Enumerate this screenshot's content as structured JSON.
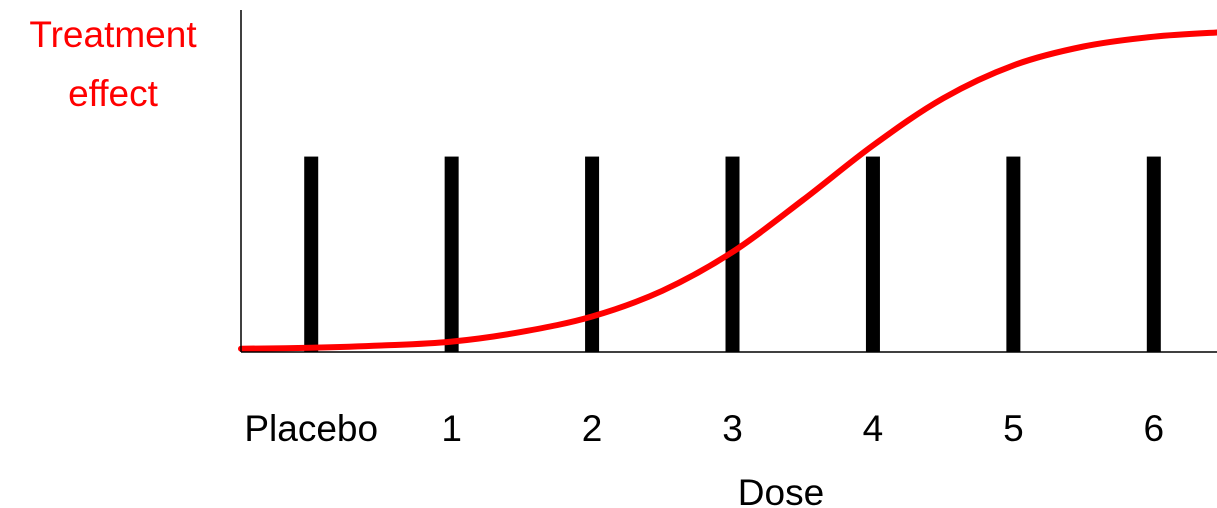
{
  "chart_data": {
    "type": "line",
    "title": "",
    "ylabel_lines": [
      "Treatment",
      "effect"
    ],
    "xlabel": "Dose",
    "categories": [
      "Placebo",
      "1",
      "2",
      "3",
      "4",
      "5",
      "6"
    ],
    "dose_levels": [
      0,
      1,
      2,
      3,
      4,
      5,
      6
    ],
    "dose_bar_height": 0.6,
    "curve": {
      "type": "sigmoid",
      "x": [
        -0.5,
        0,
        0.5,
        1,
        1.5,
        2,
        2.5,
        3,
        3.5,
        4,
        4.5,
        5,
        5.5,
        6,
        6.5
      ],
      "y": [
        0.01,
        0.013,
        0.02,
        0.032,
        0.062,
        0.109,
        0.188,
        0.307,
        0.466,
        0.634,
        0.779,
        0.88,
        0.938,
        0.968,
        0.982
      ]
    },
    "xlim": [
      -0.5,
      6.45
    ],
    "ylim": [
      0,
      1.05
    ],
    "grid": false,
    "legend": "none",
    "colors": {
      "curve": "#ff0000",
      "bars": "#000000",
      "ylabel": "#ff0000",
      "axes": "#000000"
    }
  }
}
